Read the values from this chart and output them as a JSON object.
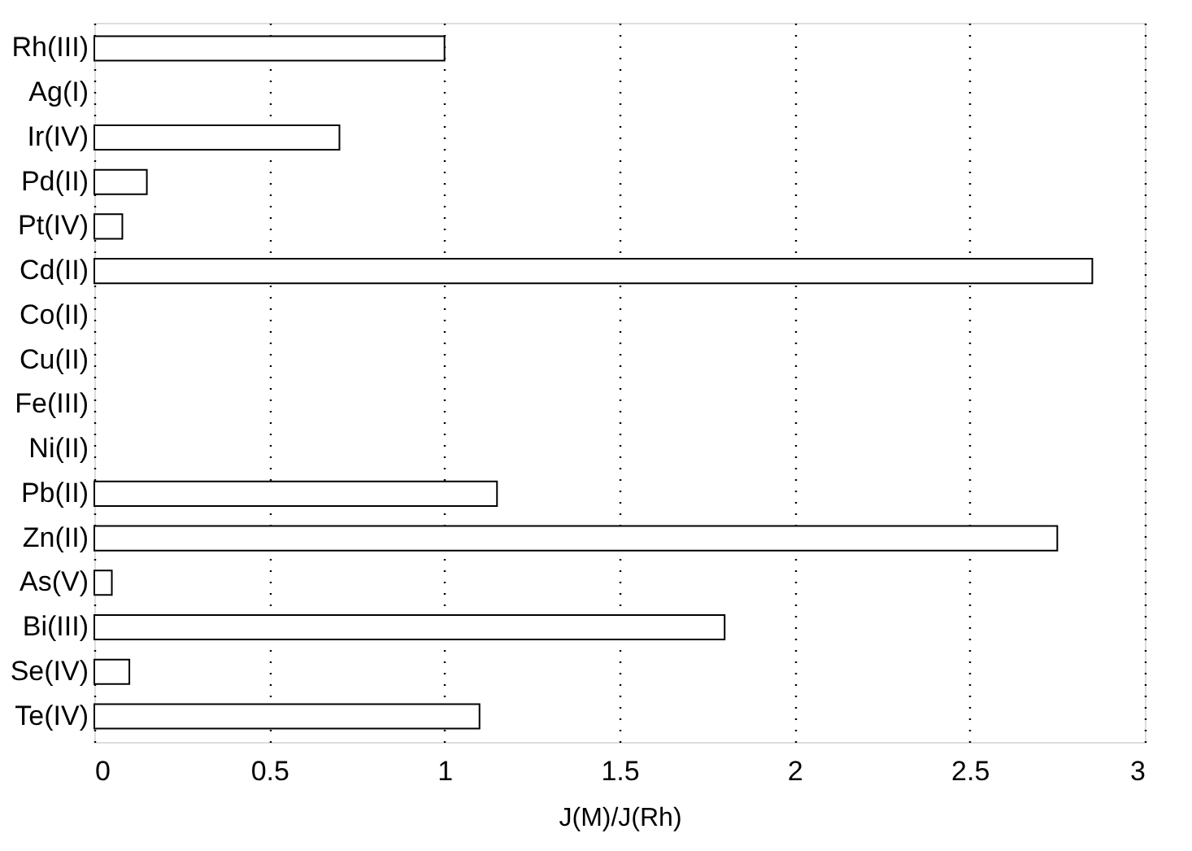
{
  "chart_data": {
    "type": "bar",
    "orientation": "horizontal",
    "xlabel": "J(M)/J(Rh)",
    "categories": [
      "Rh(III)",
      "Ag(I)",
      "Ir(IV)",
      "Pd(II)",
      "Pt(IV)",
      "Cd(II)",
      "Co(II)",
      "Cu(II)",
      "Fe(III)",
      "Ni(II)",
      "Pb(II)",
      "Zn(II)",
      "As(V)",
      "Bi(III)",
      "Se(IV)",
      "Te(IV)"
    ],
    "values": [
      1.0,
      null,
      0.7,
      0.15,
      0.08,
      2.85,
      null,
      null,
      null,
      null,
      1.15,
      2.75,
      0.05,
      1.8,
      0.1,
      1.1
    ],
    "color": "#ffffff",
    "xlim": [
      0,
      3
    ],
    "xticks": [
      0,
      0.5,
      1,
      1.5,
      2,
      2.5,
      3
    ],
    "grid": "x"
  }
}
